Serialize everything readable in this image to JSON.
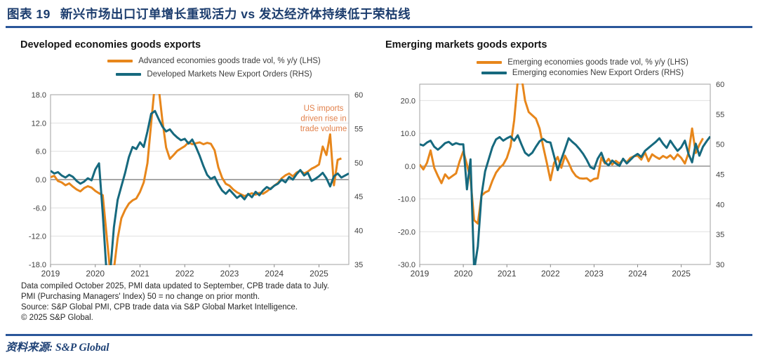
{
  "header": {
    "figure_label": "图表 19",
    "title": "新兴市场出口订单增长重现活力 vs 发达经济体持续低于荣枯线",
    "accent_color": "#2A5699"
  },
  "source": {
    "label": "资料来源:",
    "value": "S&P Global"
  },
  "footnotes": [
    "Data compiled October 2025, PMI data updated to September, CPB trade data to July.",
    "PMI (Purchasing Managers' Index) 50 = no change on prior month.",
    "Source: S&P Global PMI, CPB trade data via S&P Global Market Intelligence.",
    "© 2025 S&P Global."
  ],
  "chart_data": [
    {
      "type": "line",
      "title": "Developed economies goods exports",
      "frequency": "monthly",
      "x_start": "2019-01",
      "x_end": "2025-09",
      "total_months": 81,
      "x_tick_labels": [
        "2019",
        "2020",
        "2021",
        "2022",
        "2023",
        "2024",
        "2025"
      ],
      "grid": true,
      "legend_position": "top-center",
      "lhs_axis": {
        "min": -18,
        "max": 18,
        "ticks": [
          18,
          12,
          6,
          0,
          -6,
          -12,
          -18
        ],
        "labels": [
          "18.0",
          "12.0",
          "6.0",
          "0.0",
          "-6.0",
          "-12.0",
          "-18.0"
        ]
      },
      "rhs_axis": {
        "min": 35,
        "max": 60,
        "ticks": [
          60,
          55,
          50,
          45,
          40,
          35
        ],
        "labels": [
          "60",
          "55",
          "50",
          "45",
          "40",
          "35"
        ]
      },
      "annotation": {
        "text_lines": [
          "US imports",
          "driven rise in",
          "trade volume"
        ],
        "color": "#E2814B"
      },
      "series": [
        {
          "name": "Advanced economies goods trade vol, % y/y (LHS)",
          "axis": "lhs",
          "color": "#E7861B",
          "values": [
            0.5,
            0.8,
            -0.3,
            -0.6,
            -1.2,
            -0.8,
            -1.5,
            -2.1,
            -2.5,
            -1.8,
            -1.4,
            -1.7,
            -2.4,
            -2.9,
            -3.3,
            -11.5,
            -19.5,
            -19.0,
            -12.5,
            -8.2,
            -6.4,
            -5.1,
            -4.4,
            -4.0,
            -2.6,
            -0.6,
            3.5,
            12.0,
            20.5,
            19.5,
            12.5,
            6.8,
            4.4,
            5.2,
            6.1,
            6.6,
            7.1,
            7.9,
            7.5,
            7.7,
            7.9,
            7.5,
            7.8,
            7.6,
            6.2,
            2.6,
            0.4,
            -0.9,
            -1.3,
            -2.1,
            -2.7,
            -3.1,
            -3.5,
            -3.2,
            -2.9,
            -3.2,
            -2.8,
            -3.0,
            -2.5,
            -1.9,
            -1.3,
            -0.7,
            0.3,
            0.9,
            1.3,
            0.7,
            1.5,
            1.9,
            1.3,
            1.7,
            2.3,
            2.7,
            3.2,
            7.0,
            5.2,
            9.6,
            -1.2,
            4.2,
            4.5
          ]
        },
        {
          "name": "Developed Markets New Export Orders (RHS)",
          "axis": "rhs",
          "color": "#16697E",
          "values": [
            48.8,
            48.4,
            48.6,
            48.1,
            47.8,
            48.2,
            47.9,
            47.3,
            46.9,
            47.2,
            47.7,
            47.4,
            49.0,
            49.9,
            42.5,
            34.0,
            33.8,
            40.5,
            44.5,
            46.5,
            48.5,
            50.8,
            52.3,
            52.0,
            53.0,
            52.3,
            54.6,
            57.2,
            57.6,
            56.4,
            55.3,
            54.6,
            54.9,
            54.2,
            53.7,
            53.3,
            53.5,
            52.8,
            53.4,
            52.3,
            51.0,
            49.5,
            48.2,
            47.6,
            47.9,
            46.8,
            45.9,
            45.4,
            46.0,
            45.4,
            44.8,
            45.2,
            44.6,
            45.4,
            44.9,
            45.7,
            45.2,
            45.9,
            46.4,
            46.1,
            46.6,
            46.9,
            47.5,
            47.1,
            47.9,
            47.5,
            48.3,
            48.9,
            48.1,
            48.5,
            47.3,
            47.6,
            48.0,
            48.5,
            47.7,
            46.5,
            48.0,
            48.4,
            47.8,
            48.1,
            48.4
          ]
        }
      ]
    },
    {
      "type": "line",
      "title": "Emerging markets goods exports",
      "frequency": "monthly",
      "x_start": "2019-01",
      "x_end": "2025-09",
      "total_months": 81,
      "x_tick_labels": [
        "2019",
        "2020",
        "2021",
        "2022",
        "2023",
        "2024",
        "2025"
      ],
      "grid": true,
      "legend_position": "top-center",
      "lhs_axis": {
        "min": -30,
        "max": 25,
        "ticks": [
          20,
          10,
          0,
          -10,
          -20,
          -30
        ],
        "labels": [
          "20.0",
          "10.0",
          "0.0",
          "-10.0",
          "-20.0",
          "-30.0"
        ]
      },
      "rhs_axis": {
        "min": 30,
        "max": 60,
        "ticks": [
          60,
          55,
          50,
          45,
          40,
          35,
          30
        ],
        "labels": [
          "60",
          "55",
          "50",
          "45",
          "40",
          "35",
          "30"
        ]
      },
      "annotation": null,
      "series": [
        {
          "name": "Emerging economies goods trade vol, % y/y (LHS)",
          "axis": "lhs",
          "color": "#E7861B",
          "values": [
            0.5,
            -1.0,
            1.0,
            4.8,
            -0.5,
            -3.0,
            -5.2,
            -2.5,
            -3.8,
            -3.0,
            -2.2,
            1.5,
            4.5,
            0.5,
            -4.0,
            -16.5,
            -17.5,
            -9.0,
            -8.0,
            -7.5,
            -4.5,
            -2.0,
            -0.5,
            0.5,
            2.5,
            6.0,
            14.0,
            26.0,
            27.5,
            20.0,
            16.5,
            15.5,
            14.5,
            11.5,
            6.0,
            1.0,
            -4.3,
            1.0,
            2.8,
            -0.5,
            3.2,
            1.0,
            -1.5,
            -3.0,
            -3.7,
            -3.8,
            -3.7,
            -4.6,
            -3.9,
            -3.7,
            2.6,
            0.8,
            2.2,
            0.5,
            1.6,
            0.8,
            2.0,
            1.2,
            2.5,
            3.0,
            3.2,
            2.0,
            4.2,
            1.5,
            3.6,
            2.8,
            2.2,
            3.1,
            2.5,
            3.3,
            2.1,
            3.6,
            2.5,
            0.8,
            4.0,
            11.5,
            4.0,
            6.5,
            8.5
          ]
        },
        {
          "name": "Emerging economies New Export Orders (RHS)",
          "axis": "rhs",
          "color": "#16697E",
          "values": [
            50.0,
            49.8,
            50.3,
            50.6,
            49.6,
            49.1,
            49.6,
            50.2,
            50.4,
            49.9,
            50.2,
            50.0,
            50.0,
            42.5,
            47.5,
            29.0,
            33.0,
            41.5,
            45.5,
            47.5,
            49.5,
            50.8,
            51.2,
            50.6,
            51.0,
            51.3,
            50.6,
            51.5,
            50.0,
            48.6,
            48.1,
            48.6,
            49.6,
            50.5,
            50.9,
            50.4,
            50.3,
            48.0,
            45.7,
            47.5,
            49.2,
            51.0,
            50.4,
            49.9,
            49.2,
            48.4,
            47.4,
            46.2,
            45.9,
            47.6,
            48.6,
            47.0,
            46.5,
            47.3,
            46.8,
            46.4,
            47.6,
            46.8,
            47.4,
            48.0,
            48.4,
            47.9,
            48.9,
            49.4,
            49.9,
            50.4,
            51.0,
            50.1,
            49.4,
            50.6,
            49.7,
            48.9,
            49.5,
            50.6,
            48.4,
            47.0,
            50.1,
            48.1,
            49.6,
            50.5,
            51.3
          ]
        }
      ]
    }
  ]
}
